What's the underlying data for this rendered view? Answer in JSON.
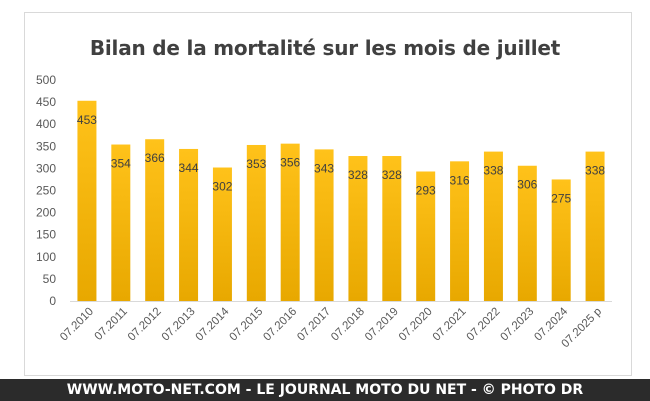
{
  "chart_data": {
    "type": "bar",
    "title": "Bilan de la mortalité sur les mois de juillet",
    "categories": [
      "07.2010",
      "07.2011",
      "07.2012",
      "07.2013",
      "07.2014",
      "07.2015",
      "07.2016",
      "07.2017",
      "07.2018",
      "07.2019",
      "07.2020",
      "07.2021",
      "07.2022",
      "07.2023",
      "07.2024",
      "07.2025 p"
    ],
    "values": [
      453,
      354,
      366,
      344,
      302,
      353,
      356,
      343,
      328,
      328,
      293,
      316,
      338,
      306,
      275,
      338
    ],
    "ylim": [
      0,
      500
    ],
    "yticks": [
      0,
      50,
      100,
      150,
      200,
      250,
      300,
      350,
      400,
      450,
      500
    ],
    "grid": false,
    "legend": "none",
    "bar_color_top": "#ffc21a",
    "bar_color_bottom": "#e8a800"
  },
  "footer": {
    "text": "WWW.MOTO-NET.COM - LE JOURNAL MOTO DU NET - © PHOTO DR"
  }
}
